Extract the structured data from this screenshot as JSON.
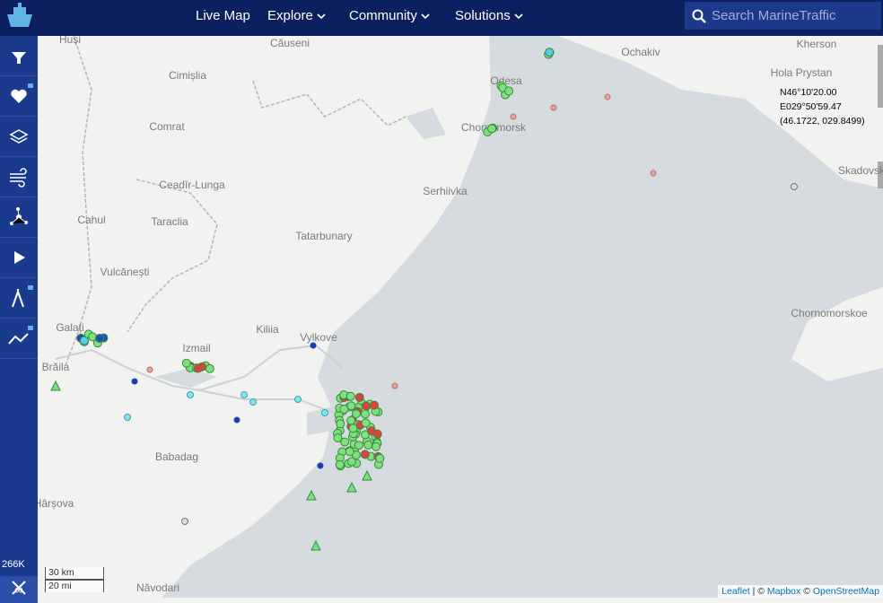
{
  "nav": {
    "items": [
      "Live Map",
      "Explore",
      "Community",
      "Solutions"
    ],
    "search_placeholder": "Search MarineTraffic"
  },
  "sidebar": {
    "vessel_count": "266K",
    "timer": "∞"
  },
  "coordinates": {
    "lat": "N46°10'20.00",
    "lon": "E029°50'59.47",
    "decimal": "(46.1722, 029.8499)"
  },
  "map_labels": [
    "Huși",
    "Căuseni",
    "Cimișlia",
    "Comrat",
    "Ceadîr-Lunga",
    "Taraclia",
    "Cahul",
    "Vulcănești",
    "Galați",
    "Brăila",
    "Izmail",
    "Kiliia",
    "Vylkove",
    "Tatarbunary",
    "Serhiivka",
    "Chornomorsk",
    "Odesa",
    "Ochakiv",
    "Kherson",
    "Hola Prystan",
    "Skadovsk",
    "Chornomorskoe",
    "Babadag",
    "Hârșova",
    "Năvodari"
  ],
  "scale": {
    "metric": "30 km",
    "imperial": "20 mi"
  },
  "attribution": {
    "leaflet": "Leaflet",
    "sep": "| ©",
    "mapbox": "Mapbox",
    "sep2": "©",
    "osm": "OpenStreetMap"
  }
}
